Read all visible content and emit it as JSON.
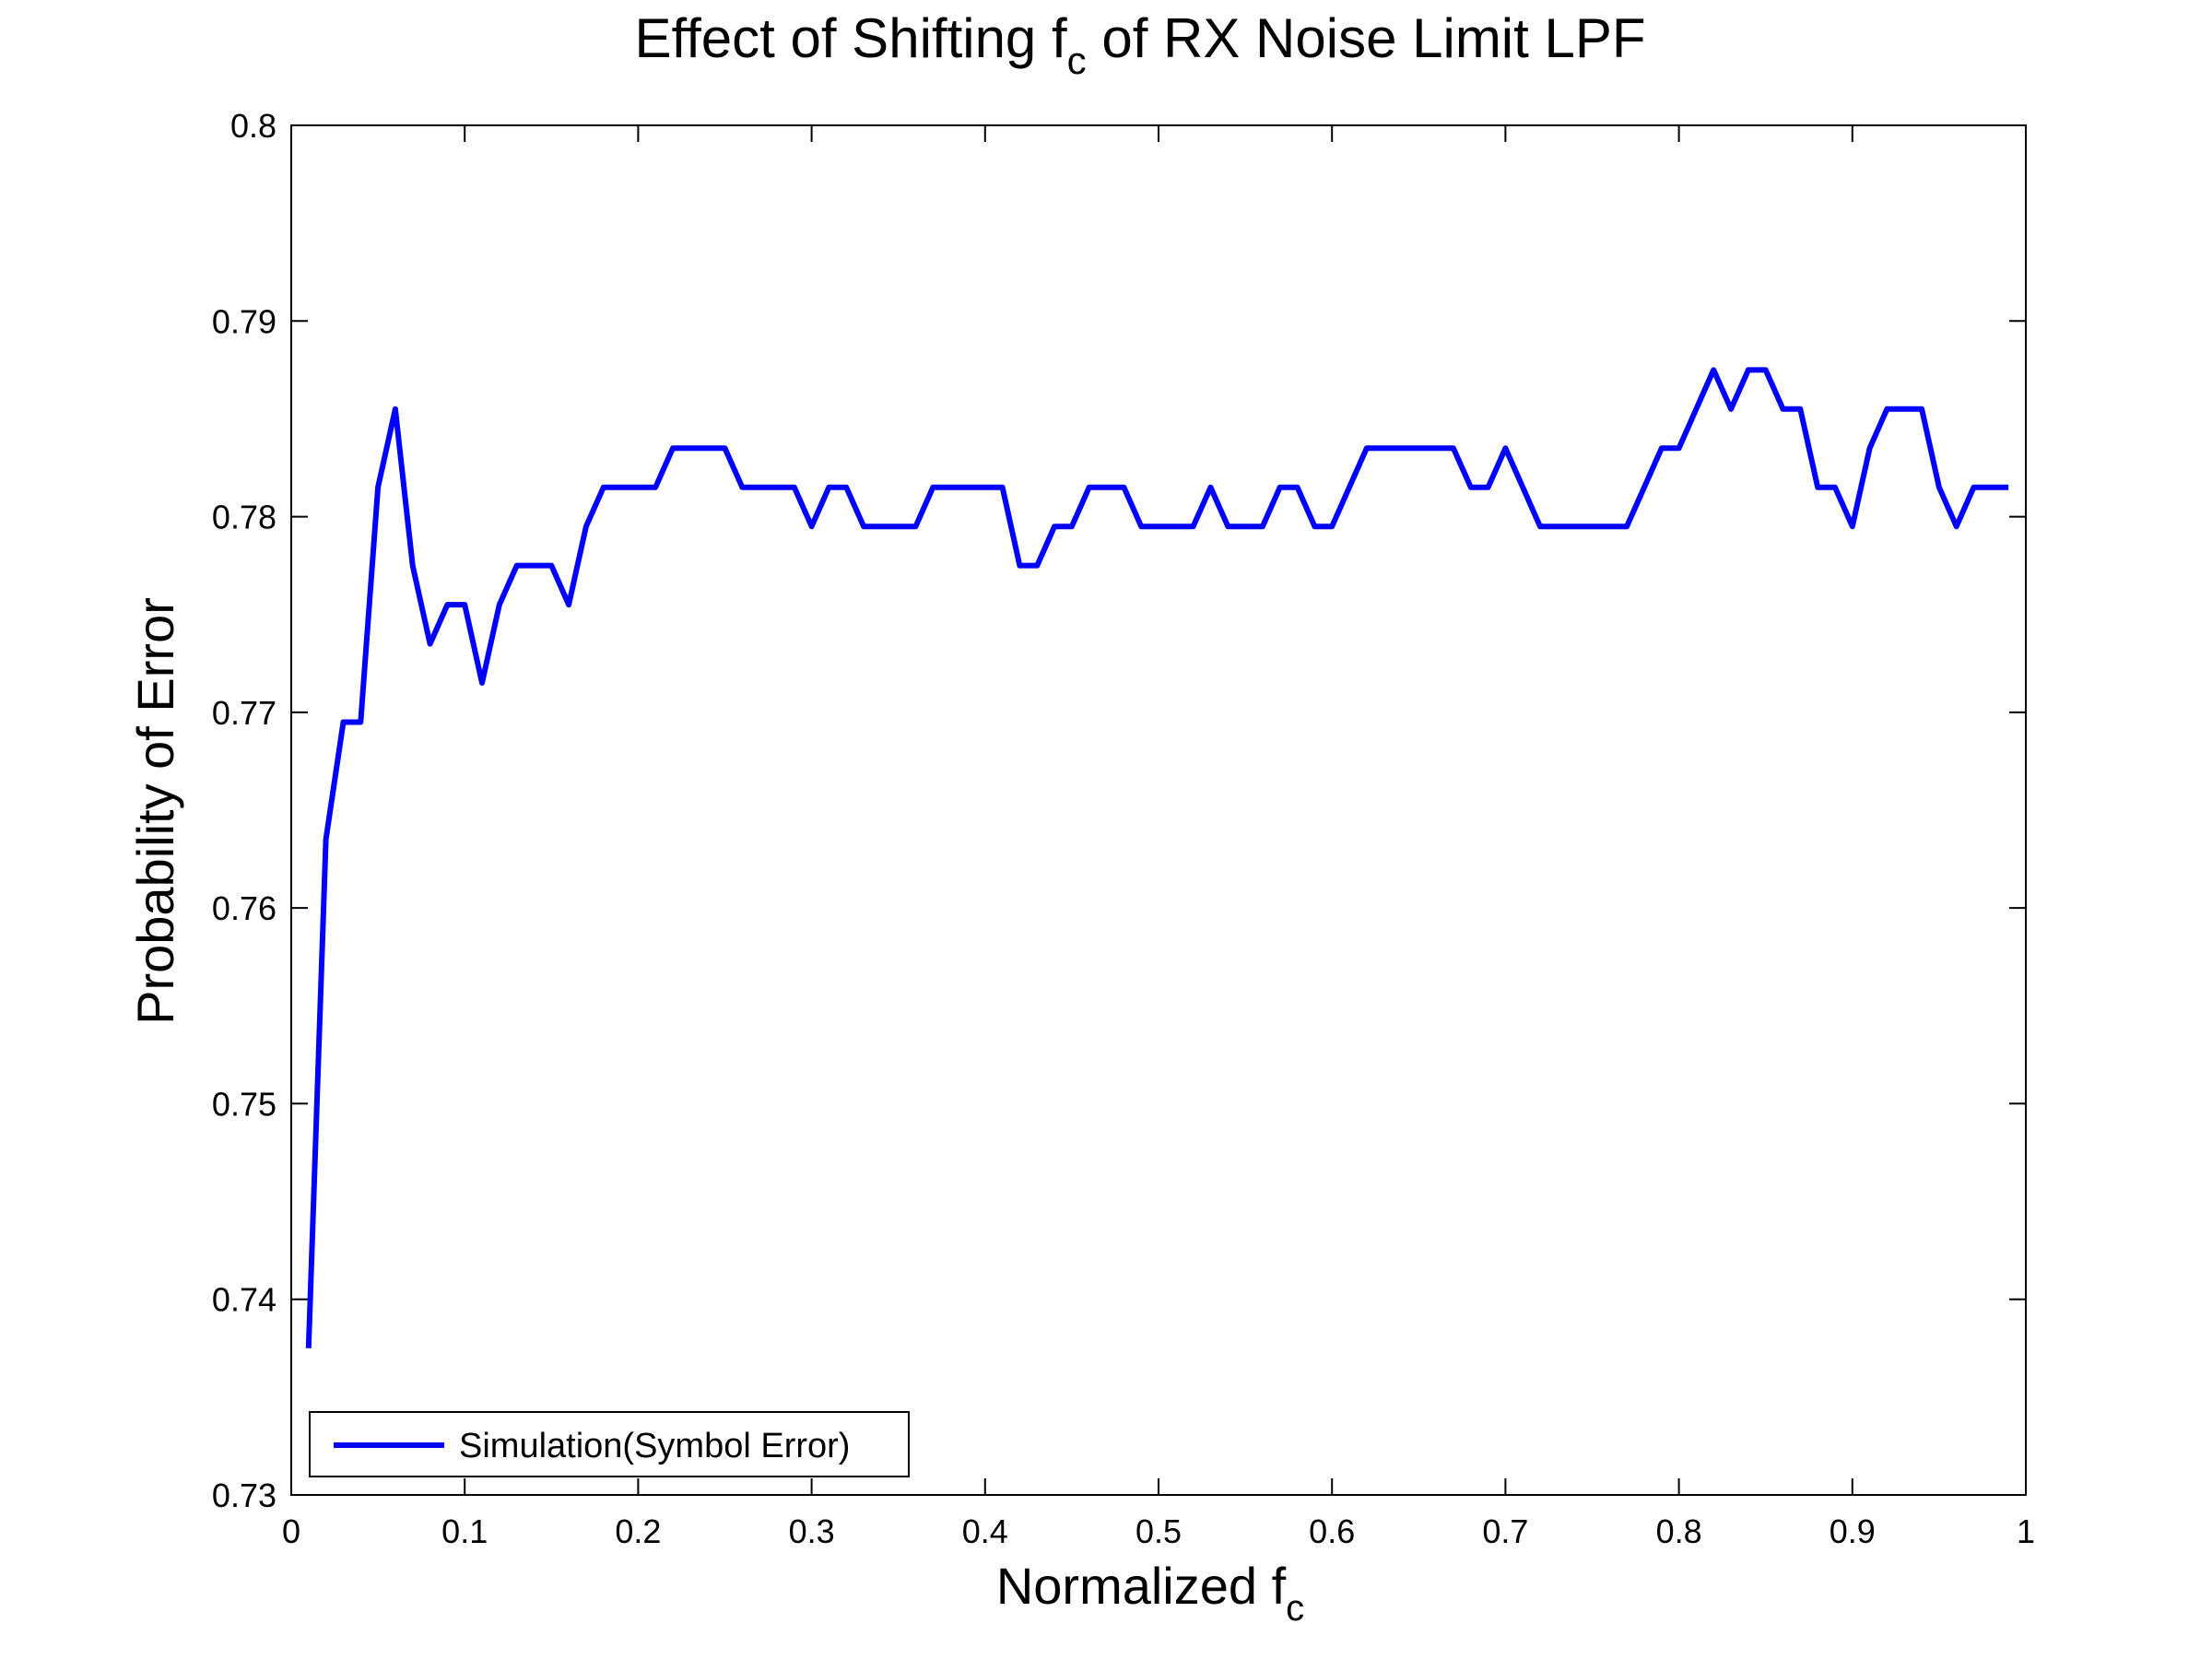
{
  "chart_data": {
    "type": "line",
    "title": "Effect of Shifting f",
    "title_sub": "c",
    "title_rest": " of RX Noise Limit LPF",
    "xlabel": "Normalized f",
    "xlabel_sub": "c",
    "ylabel": "Probability of Error",
    "xlim": [
      0,
      1
    ],
    "ylim": [
      0.73,
      0.8
    ],
    "xticks": [
      0,
      0.1,
      0.2,
      0.3,
      0.4,
      0.5,
      0.6,
      0.7,
      0.8,
      0.9,
      1
    ],
    "xtick_labels": [
      "0",
      "0.1",
      "0.2",
      "0.3",
      "0.4",
      "0.5",
      "0.6",
      "0.7",
      "0.8",
      "0.9",
      "1"
    ],
    "yticks": [
      0.73,
      0.74,
      0.75,
      0.76,
      0.77,
      0.78,
      0.79,
      0.8
    ],
    "ytick_labels": [
      "0.73",
      "0.74",
      "0.75",
      "0.76",
      "0.77",
      "0.78",
      "0.79",
      "0.8"
    ],
    "grid": false,
    "legend_position": "bottom-left",
    "series": [
      {
        "name": "Simulation(Symbol Error)",
        "color": "#0000ff",
        "x": [
          0.01,
          0.02,
          0.03,
          0.04,
          0.05,
          0.06,
          0.07,
          0.08,
          0.09,
          0.1,
          0.11,
          0.12,
          0.13,
          0.14,
          0.15,
          0.16,
          0.17,
          0.18,
          0.19,
          0.2,
          0.21,
          0.22,
          0.23,
          0.24,
          0.25,
          0.26,
          0.27,
          0.28,
          0.29,
          0.3,
          0.31,
          0.32,
          0.33,
          0.34,
          0.35,
          0.36,
          0.37,
          0.38,
          0.39,
          0.4,
          0.41,
          0.42,
          0.43,
          0.44,
          0.45,
          0.46,
          0.47,
          0.48,
          0.49,
          0.5,
          0.51,
          0.52,
          0.53,
          0.54,
          0.55,
          0.56,
          0.57,
          0.58,
          0.59,
          0.6,
          0.61,
          0.62,
          0.63,
          0.64,
          0.65,
          0.66,
          0.67,
          0.68,
          0.69,
          0.7,
          0.71,
          0.72,
          0.73,
          0.74,
          0.75,
          0.76,
          0.77,
          0.78,
          0.79,
          0.8,
          0.81,
          0.82,
          0.83,
          0.84,
          0.85,
          0.86,
          0.87,
          0.88,
          0.89,
          0.9,
          0.91,
          0.92,
          0.93,
          0.94,
          0.95,
          0.96,
          0.97,
          0.98,
          0.99
        ],
        "y": [
          0.7375,
          0.7635,
          0.7695,
          0.7695,
          0.7815,
          0.7855,
          0.7775,
          0.7735,
          0.7755,
          0.7755,
          0.7715,
          0.7755,
          0.7775,
          0.7775,
          0.7775,
          0.7755,
          0.7795,
          0.7815,
          0.7815,
          0.7815,
          0.7815,
          0.7835,
          0.7835,
          0.7835,
          0.7835,
          0.7815,
          0.7815,
          0.7815,
          0.7815,
          0.7795,
          0.7815,
          0.7815,
          0.7795,
          0.7795,
          0.7795,
          0.7795,
          0.7815,
          0.7815,
          0.7815,
          0.7815,
          0.7815,
          0.7775,
          0.7775,
          0.7795,
          0.7795,
          0.7815,
          0.7815,
          0.7815,
          0.7795,
          0.7795,
          0.7795,
          0.7795,
          0.7815,
          0.7795,
          0.7795,
          0.7795,
          0.7815,
          0.7815,
          0.7795,
          0.7795,
          0.7815,
          0.7835,
          0.7835,
          0.7835,
          0.7835,
          0.7835,
          0.7835,
          0.7815,
          0.7815,
          0.7835,
          0.7815,
          0.7795,
          0.7795,
          0.7795,
          0.7795,
          0.7795,
          0.7795,
          0.7815,
          0.7835,
          0.7835,
          0.7855,
          0.7875,
          0.7855,
          0.7875,
          0.7875,
          0.7855,
          0.7855,
          0.7815,
          0.7815,
          0.7795,
          0.7835,
          0.7855,
          0.7855,
          0.7855,
          0.7815,
          0.7795,
          0.7815,
          0.7815,
          0.7815
        ]
      }
    ]
  }
}
